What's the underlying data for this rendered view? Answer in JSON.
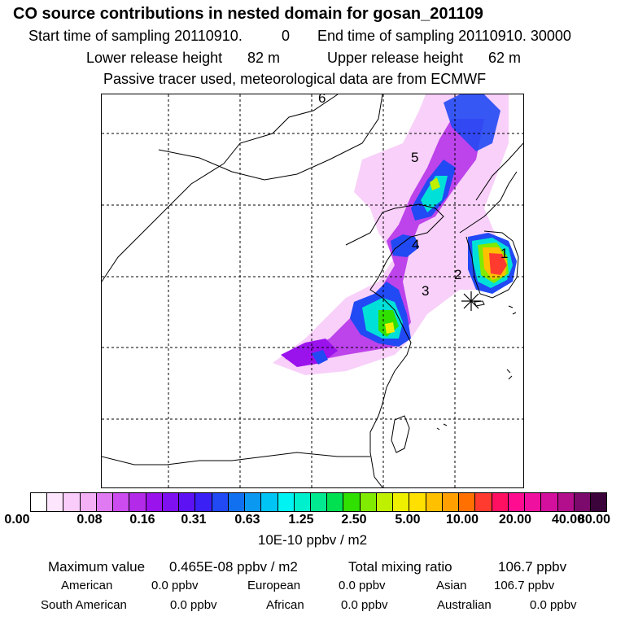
{
  "title": "CO  source contributions in nested domain for gosan_201109",
  "sampling": {
    "start_label": "Start time of sampling 20110910.",
    "start_value": "0",
    "end_label": "End time of sampling 20110910. 30000"
  },
  "release": {
    "lower_label": "Lower release height",
    "lower_value": "82 m",
    "upper_label": "Upper release height",
    "upper_value": "62 m"
  },
  "note": "Passive tracer used, meteorological data are from ECMWF",
  "map": {
    "region_labels": [
      "1",
      "2",
      "3",
      "4",
      "5",
      "6"
    ],
    "receptor_marker": "asterisk-icon"
  },
  "colorbar": {
    "colors": [
      "#ffffff",
      "#fde6fd",
      "#f9ccf9",
      "#f3b0f5",
      "#df7af2",
      "#cc4cf0",
      "#b32ae9",
      "#9a12ec",
      "#7f10f0",
      "#5c12f2",
      "#3a20f5",
      "#2149f4",
      "#1170f0",
      "#0a98f0",
      "#00c4f3",
      "#00f3f3",
      "#00efcc",
      "#00e890",
      "#00e050",
      "#30e000",
      "#80ea00",
      "#bff000",
      "#eef000",
      "#ffe000",
      "#ffc000",
      "#ffa000",
      "#ff7000",
      "#ff3b30",
      "#ff1060",
      "#ff0c90",
      "#f010a0",
      "#d3109e",
      "#b30e8c",
      "#7b0a6c",
      "#3b043a"
    ],
    "ticks": [
      "0.00",
      "0.08",
      "0.16",
      "0.31",
      "0.63",
      "1.25",
      "2.50",
      "5.00",
      "10.00",
      "20.00",
      "40.00",
      "80.00"
    ],
    "unit": "10E-10 ppbv / m2"
  },
  "stats": {
    "max_label": "Maximum value",
    "max_value": "0.465E-08 ppbv / m2",
    "total_label": "Total mixing ratio",
    "total_value": "106.7 ppbv",
    "sources": [
      {
        "name": "American",
        "value": "0.0 ppbv"
      },
      {
        "name": "European",
        "value": "0.0 ppbv"
      },
      {
        "name": "Asian",
        "value": "106.7 ppbv"
      },
      {
        "name": "South American",
        "value": "0.0 ppbv"
      },
      {
        "name": "African",
        "value": "0.0 ppbv"
      },
      {
        "name": "Australian",
        "value": "0.0 ppbv"
      }
    ]
  }
}
